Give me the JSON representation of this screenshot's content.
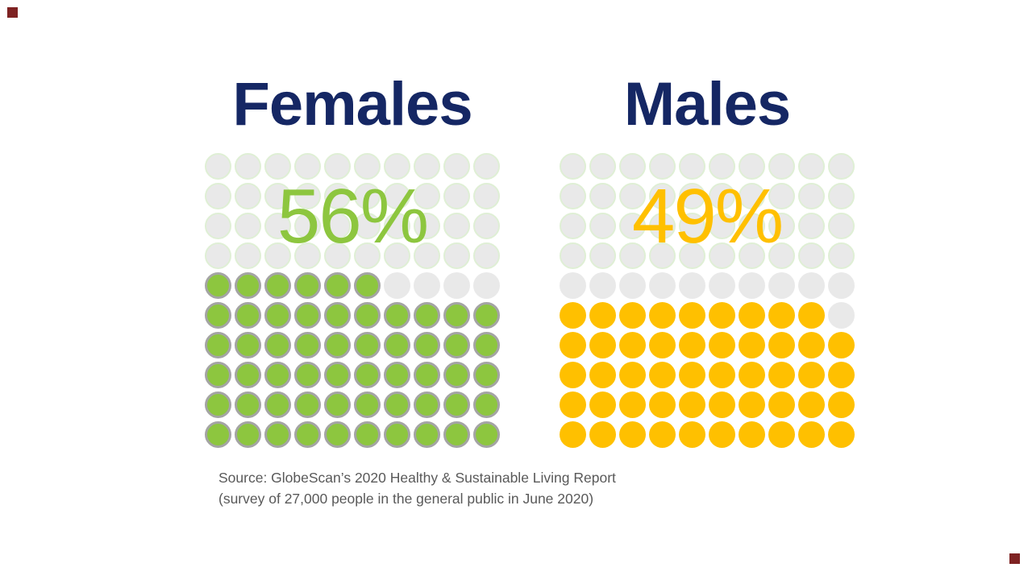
{
  "chart_data": {
    "type": "waffle",
    "categories": [
      "Females",
      "Males"
    ],
    "values": [
      56,
      49
    ],
    "grid": {
      "rows": 10,
      "cols": 10,
      "unit_per_dot_percent": 1
    },
    "fill_direction": "bottom-up",
    "partial_row_alignment": "left",
    "legend_position": "none",
    "gridlines": false,
    "series": [
      {
        "name": "Females",
        "value": 56,
        "label": "56%",
        "dot_color": "#8DC63F",
        "dot_border_color": "#A4A4A4",
        "label_color": "#8DC63F"
      },
      {
        "name": "Males",
        "value": 49,
        "label": "49%",
        "dot_color": "#FFC000",
        "dot_border_color": null,
        "label_color": "#FFC000"
      }
    ],
    "empty_dot": {
      "fill": "#E9E9E9",
      "ring_color": "#DFEFD5",
      "ring_rows_from_top": 4
    }
  },
  "source": {
    "line1": "Source: GlobeScan’s 2020 Healthy & Sustainable Living Report",
    "line2": "(survey of 27,000 people in the general public in June 2020)"
  },
  "colors": {
    "background": "#FFFFFF",
    "title_text": "#152764",
    "source_text": "#595959",
    "corner_mark": "#7E2222"
  }
}
